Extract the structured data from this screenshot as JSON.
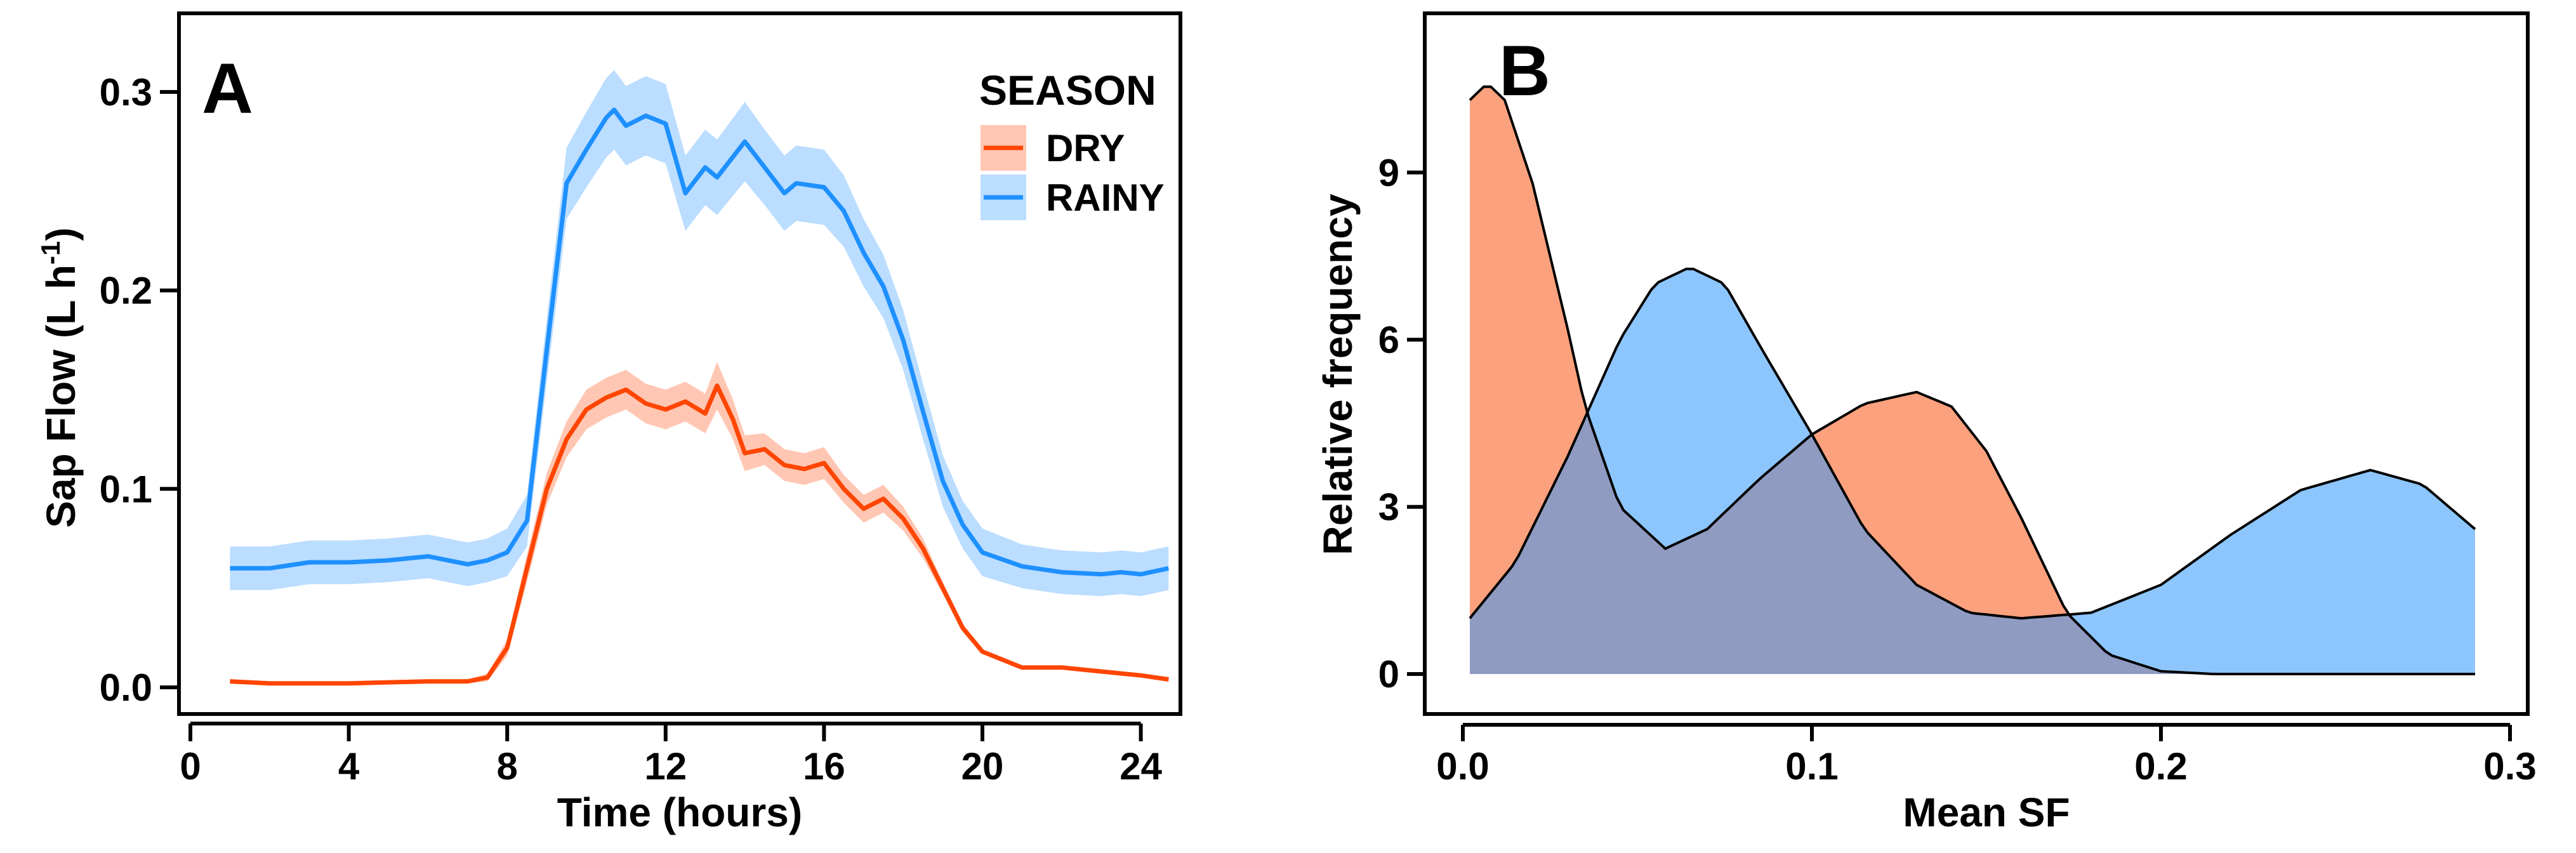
{
  "chart_data": [
    {
      "type": "line",
      "panel_label": "A",
      "xlabel": "Time (hours)",
      "ylabel": "Sap Flow (L h",
      "ylabel_sup": "-1",
      "ylabel_close": ")",
      "xlim": [
        0,
        25
      ],
      "ylim": [
        0,
        0.3
      ],
      "xticks": [
        0,
        4,
        8,
        12,
        16,
        20,
        24
      ],
      "xtick_labels": [
        "0",
        "4",
        "8",
        "12",
        "16",
        "20",
        "24"
      ],
      "yticks": [
        0.0,
        0.1,
        0.2,
        0.3
      ],
      "ytick_labels": [
        "0.0",
        "0.1",
        "0.2",
        "0.3"
      ],
      "legend": {
        "title": "SEASON",
        "position": "top-right"
      },
      "series": [
        {
          "name": "DRY",
          "color": "#FF4500",
          "band_color": "#FFC7B3",
          "x": [
            1,
            2,
            4,
            6,
            7,
            7.5,
            8,
            8.5,
            9,
            9.5,
            10,
            10.5,
            11,
            11.5,
            12,
            12.5,
            13,
            13.3,
            13.7,
            14,
            14.5,
            15,
            15.5,
            16,
            16.5,
            17,
            17.5,
            18,
            18.5,
            19,
            19.5,
            20,
            21,
            22,
            23,
            24,
            24.7
          ],
          "y": [
            0.003,
            0.002,
            0.002,
            0.003,
            0.003,
            0.005,
            0.02,
            0.06,
            0.1,
            0.125,
            0.14,
            0.146,
            0.15,
            0.143,
            0.14,
            0.144,
            0.138,
            0.152,
            0.135,
            0.118,
            0.12,
            0.112,
            0.11,
            0.113,
            0.1,
            0.09,
            0.095,
            0.085,
            0.07,
            0.05,
            0.03,
            0.018,
            0.01,
            0.01,
            0.008,
            0.006,
            0.004
          ],
          "band": [
            0.001,
            0.001,
            0.001,
            0.001,
            0.001,
            0.002,
            0.004,
            0.007,
            0.008,
            0.009,
            0.01,
            0.01,
            0.01,
            0.01,
            0.01,
            0.01,
            0.01,
            0.012,
            0.01,
            0.009,
            0.008,
            0.008,
            0.008,
            0.008,
            0.007,
            0.007,
            0.007,
            0.006,
            0.005,
            0.003,
            0.002,
            0.001,
            0.001,
            0.001,
            0.001,
            0.001,
            0.001
          ]
        },
        {
          "name": "RAINY",
          "color": "#1E90FF",
          "band_color": "#BBDDFF",
          "x": [
            1,
            2,
            3,
            4,
            5,
            6,
            7,
            7.5,
            8,
            8.5,
            9,
            9.5,
            10,
            10.5,
            10.7,
            11,
            11.5,
            12,
            12.5,
            13,
            13.3,
            14,
            14.5,
            15,
            15.3,
            16,
            16.5,
            17,
            17.5,
            18,
            18.5,
            19,
            19.5,
            20,
            21,
            22,
            23,
            23.5,
            24,
            24.7
          ],
          "y": [
            0.06,
            0.06,
            0.063,
            0.063,
            0.064,
            0.066,
            0.062,
            0.064,
            0.068,
            0.084,
            0.17,
            0.254,
            0.271,
            0.287,
            0.291,
            0.283,
            0.288,
            0.284,
            0.249,
            0.262,
            0.257,
            0.275,
            0.262,
            0.249,
            0.254,
            0.252,
            0.24,
            0.219,
            0.202,
            0.175,
            0.139,
            0.104,
            0.082,
            0.068,
            0.061,
            0.058,
            0.057,
            0.058,
            0.057,
            0.06
          ],
          "band": [
            0.011,
            0.011,
            0.011,
            0.011,
            0.011,
            0.011,
            0.011,
            0.011,
            0.012,
            0.013,
            0.016,
            0.018,
            0.019,
            0.02,
            0.02,
            0.02,
            0.02,
            0.02,
            0.019,
            0.019,
            0.019,
            0.02,
            0.019,
            0.019,
            0.019,
            0.019,
            0.018,
            0.017,
            0.016,
            0.015,
            0.014,
            0.013,
            0.012,
            0.012,
            0.011,
            0.011,
            0.011,
            0.011,
            0.011,
            0.011
          ]
        }
      ]
    },
    {
      "type": "area",
      "panel_label": "B",
      "xlabel": "Mean SF",
      "ylabel": "Relative frequency",
      "xlim": [
        -0.01,
        0.305
      ],
      "ylim": [
        0,
        11
      ],
      "xticks": [
        0.0,
        0.1,
        0.2,
        0.3
      ],
      "xtick_labels": [
        "0.0",
        "0.1",
        "0.2",
        "0.3"
      ],
      "yticks": [
        0,
        3,
        6,
        9
      ],
      "ytick_labels": [
        "0",
        "3",
        "6",
        "9"
      ],
      "overlap_color": "#8F9BC1",
      "series": [
        {
          "name": "DRY",
          "color": "#FCA17D",
          "x": [
            0.002,
            0.007,
            0.012,
            0.02,
            0.03,
            0.035,
            0.045,
            0.058,
            0.07,
            0.085,
            0.1,
            0.115,
            0.13,
            0.14,
            0.15,
            0.16,
            0.173,
            0.185,
            0.2,
            0.215,
            0.25,
            0.29
          ],
          "y": [
            10.3,
            10.6,
            10.3,
            8.8,
            6.2,
            4.8,
            3.0,
            2.25,
            2.6,
            3.5,
            4.3,
            4.85,
            5.06,
            4.8,
            4.0,
            2.8,
            1.1,
            0.35,
            0.05,
            0,
            0,
            0
          ]
        },
        {
          "name": "RAINY",
          "color": "#8DC6FC",
          "x": [
            0.002,
            0.015,
            0.03,
            0.045,
            0.055,
            0.065,
            0.075,
            0.085,
            0.1,
            0.115,
            0.13,
            0.145,
            0.16,
            0.18,
            0.2,
            0.22,
            0.24,
            0.26,
            0.275,
            0.29
          ],
          "y": [
            1.0,
            2.0,
            3.9,
            6.0,
            7.0,
            7.3,
            7.0,
            5.9,
            4.3,
            2.6,
            1.6,
            1.1,
            1.0,
            1.1,
            1.6,
            2.5,
            3.3,
            3.66,
            3.4,
            2.6
          ]
        }
      ]
    }
  ]
}
